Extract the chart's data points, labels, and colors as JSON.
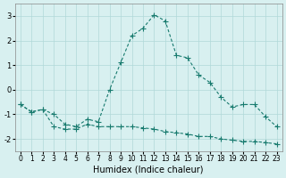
{
  "xlabel": "Humidex (Indice chaleur)",
  "x": [
    0,
    1,
    2,
    3,
    4,
    5,
    6,
    7,
    8,
    9,
    10,
    11,
    12,
    13,
    14,
    15,
    16,
    17,
    18,
    19,
    20,
    21,
    22,
    23
  ],
  "line1": [
    -0.6,
    -0.9,
    -0.8,
    -1.0,
    -1.4,
    -1.5,
    -1.2,
    -1.3,
    0.0,
    1.1,
    2.2,
    2.5,
    3.05,
    2.8,
    1.4,
    1.3,
    0.6,
    0.3,
    -0.3,
    -0.7,
    -0.6,
    -0.6,
    -1.1,
    -1.5
  ],
  "line2": [
    -0.6,
    -0.9,
    -0.8,
    -1.5,
    -1.6,
    -1.6,
    -1.4,
    -1.5,
    -1.5,
    -1.5,
    -1.5,
    -1.55,
    -1.6,
    -1.7,
    -1.75,
    -1.8,
    -1.9,
    -1.9,
    -2.0,
    -2.05,
    -2.1,
    -2.1,
    -2.15,
    -2.2
  ],
  "line_color": "#177a6e",
  "bg_color": "#d8f0f0",
  "grid_color": "#b0d8d8",
  "ylim": [
    -2.5,
    3.5
  ],
  "yticks": [
    -2,
    -1,
    0,
    1,
    2,
    3
  ],
  "xticks": [
    0,
    1,
    2,
    3,
    4,
    5,
    6,
    7,
    8,
    9,
    10,
    11,
    12,
    13,
    14,
    15,
    16,
    17,
    18,
    19,
    20,
    21,
    22,
    23
  ]
}
